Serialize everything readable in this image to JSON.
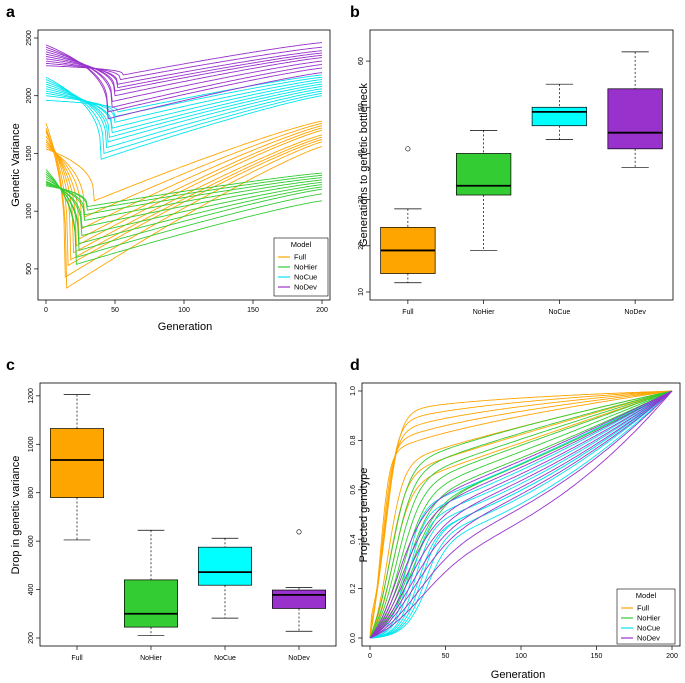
{
  "chart_data": [
    {
      "panel": "a",
      "type": "line",
      "xlabel": "Generation",
      "ylabel": "Genetic Variance",
      "xlim": [
        0,
        200
      ],
      "ylim": [
        300,
        2500
      ],
      "xticks": [
        0,
        50,
        100,
        150,
        200
      ],
      "yticks": [
        500,
        1000,
        1500,
        2000,
        2500
      ],
      "legend_title": "Model",
      "legend_position": "bottom-right",
      "series": [
        {
          "name": "Full",
          "color": "#FFA500",
          "runs": [
            {
              "start": 1760,
              "min": 335,
              "t_min": 15,
              "end": 1560
            },
            {
              "start": 1720,
              "min": 430,
              "t_min": 14,
              "end": 1600
            },
            {
              "start": 1700,
              "min": 530,
              "t_min": 16,
              "end": 1620
            },
            {
              "start": 1680,
              "min": 580,
              "t_min": 18,
              "end": 1640
            },
            {
              "start": 1650,
              "min": 640,
              "t_min": 20,
              "end": 1660
            },
            {
              "start": 1620,
              "min": 700,
              "t_min": 22,
              "end": 1700
            },
            {
              "start": 1600,
              "min": 760,
              "t_min": 24,
              "end": 1720
            },
            {
              "start": 1580,
              "min": 850,
              "t_min": 26,
              "end": 1740
            },
            {
              "start": 1560,
              "min": 950,
              "t_min": 28,
              "end": 1760
            },
            {
              "start": 1540,
              "min": 1090,
              "t_min": 35,
              "end": 1780
            }
          ]
        },
        {
          "name": "NoHier",
          "color": "#33CC33",
          "runs": [
            {
              "start": 1360,
              "min": 540,
              "t_min": 22,
              "end": 1090
            },
            {
              "start": 1340,
              "min": 600,
              "t_min": 22,
              "end": 1150
            },
            {
              "start": 1320,
              "min": 660,
              "t_min": 24,
              "end": 1190
            },
            {
              "start": 1300,
              "min": 720,
              "t_min": 24,
              "end": 1210
            },
            {
              "start": 1280,
              "min": 790,
              "t_min": 26,
              "end": 1230
            },
            {
              "start": 1260,
              "min": 860,
              "t_min": 26,
              "end": 1250
            },
            {
              "start": 1250,
              "min": 920,
              "t_min": 28,
              "end": 1270
            },
            {
              "start": 1240,
              "min": 970,
              "t_min": 28,
              "end": 1290
            },
            {
              "start": 1230,
              "min": 1010,
              "t_min": 30,
              "end": 1310
            },
            {
              "start": 1220,
              "min": 1040,
              "t_min": 30,
              "end": 1330
            }
          ]
        },
        {
          "name": "NoCue",
          "color": "#00E5EE",
          "runs": [
            {
              "start": 2160,
              "min": 1450,
              "t_min": 40,
              "end": 2000
            },
            {
              "start": 2140,
              "min": 1500,
              "t_min": 42,
              "end": 2020
            },
            {
              "start": 2120,
              "min": 1550,
              "t_min": 44,
              "end": 2040
            },
            {
              "start": 2100,
              "min": 1600,
              "t_min": 45,
              "end": 2060
            },
            {
              "start": 2080,
              "min": 1640,
              "t_min": 46,
              "end": 2080
            },
            {
              "start": 2060,
              "min": 1680,
              "t_min": 48,
              "end": 2100
            },
            {
              "start": 2040,
              "min": 1720,
              "t_min": 48,
              "end": 2120
            },
            {
              "start": 2020,
              "min": 1770,
              "t_min": 50,
              "end": 2140
            },
            {
              "start": 2000,
              "min": 1820,
              "t_min": 50,
              "end": 2160
            },
            {
              "start": 1960,
              "min": 1860,
              "t_min": 52,
              "end": 2180
            }
          ]
        },
        {
          "name": "NoDev",
          "color": "#9932CC",
          "runs": [
            {
              "start": 2440,
              "min": 1800,
              "t_min": 45,
              "end": 2200
            },
            {
              "start": 2420,
              "min": 1860,
              "t_min": 45,
              "end": 2240
            },
            {
              "start": 2400,
              "min": 1900,
              "t_min": 48,
              "end": 2270
            },
            {
              "start": 2380,
              "min": 1950,
              "t_min": 48,
              "end": 2300
            },
            {
              "start": 2360,
              "min": 2000,
              "t_min": 50,
              "end": 2330
            },
            {
              "start": 2340,
              "min": 2040,
              "t_min": 50,
              "end": 2350
            },
            {
              "start": 2320,
              "min": 2070,
              "t_min": 52,
              "end": 2370
            },
            {
              "start": 2300,
              "min": 2100,
              "t_min": 52,
              "end": 2390
            },
            {
              "start": 2280,
              "min": 2140,
              "t_min": 54,
              "end": 2420
            },
            {
              "start": 2260,
              "min": 2180,
              "t_min": 56,
              "end": 2460
            }
          ]
        }
      ]
    },
    {
      "panel": "b",
      "type": "boxplot",
      "ylabel": "Generations to genetic bottleneck",
      "ylim": [
        10,
        65
      ],
      "yticks": [
        10,
        20,
        30,
        40,
        50,
        60
      ],
      "categories": [
        "Full",
        "NoHier",
        "NoCue",
        "NoDev"
      ],
      "boxes": [
        {
          "name": "Full",
          "color": "#FFA500",
          "whisker_low": 12,
          "q1": 14,
          "median": 19,
          "q3": 24,
          "whisker_high": 28,
          "outliers": [
            41
          ]
        },
        {
          "name": "NoHier",
          "color": "#33CC33",
          "whisker_low": 19,
          "q1": 31,
          "median": 33,
          "q3": 40,
          "whisker_high": 45,
          "outliers": []
        },
        {
          "name": "NoCue",
          "color": "#00FFFF",
          "whisker_low": 43,
          "q1": 46,
          "median": 49,
          "q3": 50,
          "whisker_high": 55,
          "outliers": []
        },
        {
          "name": "NoDev",
          "color": "#9932CC",
          "whisker_low": 37,
          "q1": 41,
          "median": 44.5,
          "q3": 54,
          "whisker_high": 62,
          "outliers": []
        }
      ]
    },
    {
      "panel": "c",
      "type": "boxplot",
      "ylabel": "Drop in genetic variance",
      "ylim": [
        200,
        1220
      ],
      "yticks": [
        200,
        400,
        600,
        800,
        1000,
        1200
      ],
      "categories": [
        "Full",
        "NoHier",
        "NoCue",
        "NoDev"
      ],
      "boxes": [
        {
          "name": "Full",
          "color": "#FFA500",
          "whisker_low": 605,
          "q1": 780,
          "median": 935,
          "q3": 1065,
          "whisker_high": 1205,
          "outliers": []
        },
        {
          "name": "NoHier",
          "color": "#33CC33",
          "whisker_low": 210,
          "q1": 245,
          "median": 300,
          "q3": 440,
          "whisker_high": 645,
          "outliers": []
        },
        {
          "name": "NoCue",
          "color": "#00FFFF",
          "whisker_low": 282,
          "q1": 418,
          "median": 472,
          "q3": 575,
          "whisker_high": 612,
          "outliers": []
        },
        {
          "name": "NoDev",
          "color": "#9932CC",
          "whisker_low": 228,
          "q1": 322,
          "median": 378,
          "q3": 398,
          "whisker_high": 408,
          "outliers": [
            638
          ]
        }
      ]
    },
    {
      "panel": "d",
      "type": "line",
      "xlabel": "Generation",
      "ylabel": "Projected genotype",
      "xlim": [
        0,
        200
      ],
      "ylim": [
        0,
        1
      ],
      "xticks": [
        0,
        50,
        100,
        150,
        200
      ],
      "yticks": [
        0.0,
        0.2,
        0.4,
        0.6,
        0.8,
        1.0
      ],
      "ytick_labels": [
        "0.0",
        "0.2",
        "0.4",
        "0.6",
        "0.8",
        "1.0"
      ],
      "legend_title": "Model",
      "legend_position": "bottom-right",
      "series": [
        {
          "name": "Full",
          "color": "#FFA500",
          "runs": [
            {
              "t_mid": 7,
              "width": 3,
              "plateau": 0.7,
              "b": 0.6
            },
            {
              "t_mid": 8,
              "width": 3.5,
              "plateau": 0.72,
              "b": 0.5
            },
            {
              "t_mid": 9,
              "width": 4,
              "plateau": 0.74,
              "b": 0.4
            },
            {
              "t_mid": 10,
              "width": 4,
              "plateau": 0.76,
              "b": 0.3
            },
            {
              "t_mid": 11,
              "width": 4.5,
              "plateau": 0.78,
              "b": 0.2
            },
            {
              "t_mid": 12,
              "width": 5,
              "plateau": 0.66,
              "b": 0.8
            },
            {
              "t_mid": 13,
              "width": 5.5,
              "plateau": 0.62,
              "b": 0.9
            },
            {
              "t_mid": 15,
              "width": 6,
              "plateau": 0.58,
              "b": 1.0
            }
          ]
        },
        {
          "name": "NoHier",
          "color": "#33CC33",
          "runs": [
            {
              "t_mid": 14,
              "width": 6,
              "plateau": 0.62,
              "b": 0.7
            },
            {
              "t_mid": 16,
              "width": 6.5,
              "plateau": 0.6,
              "b": 0.8
            },
            {
              "t_mid": 18,
              "width": 7,
              "plateau": 0.58,
              "b": 0.9
            },
            {
              "t_mid": 20,
              "width": 7.5,
              "plateau": 0.56,
              "b": 1.0
            },
            {
              "t_mid": 22,
              "width": 8,
              "plateau": 0.54,
              "b": 1.1
            },
            {
              "t_mid": 24,
              "width": 8.5,
              "plateau": 0.52,
              "b": 1.2
            },
            {
              "t_mid": 26,
              "width": 9,
              "plateau": 0.5,
              "b": 1.3
            },
            {
              "t_mid": 28,
              "width": 9.5,
              "plateau": 0.5,
              "b": 1.3
            }
          ]
        },
        {
          "name": "NoCue",
          "color": "#00E5EE",
          "runs": [
            {
              "t_mid": 24,
              "width": 5,
              "plateau": 0.48,
              "b": 1.2
            },
            {
              "t_mid": 26,
              "width": 5,
              "plateau": 0.46,
              "b": 1.3
            },
            {
              "t_mid": 28,
              "width": 5.5,
              "plateau": 0.44,
              "b": 1.4
            },
            {
              "t_mid": 30,
              "width": 5.5,
              "plateau": 0.42,
              "b": 1.5
            },
            {
              "t_mid": 32,
              "width": 6,
              "plateau": 0.4,
              "b": 1.6
            },
            {
              "t_mid": 34,
              "width": 6,
              "plateau": 0.4,
              "b": 1.6
            },
            {
              "t_mid": 36,
              "width": 6.5,
              "plateau": 0.38,
              "b": 1.7
            },
            {
              "t_mid": 38,
              "width": 7,
              "plateau": 0.36,
              "b": 1.8
            }
          ]
        },
        {
          "name": "NoDev",
          "color": "#9932CC",
          "runs": [
            {
              "t_mid": 18,
              "width": 9,
              "plateau": 0.5,
              "b": 1.2
            },
            {
              "t_mid": 20,
              "width": 10,
              "plateau": 0.48,
              "b": 1.3
            },
            {
              "t_mid": 22,
              "width": 11,
              "plateau": 0.46,
              "b": 1.4
            },
            {
              "t_mid": 24,
              "width": 12,
              "plateau": 0.44,
              "b": 1.5
            },
            {
              "t_mid": 26,
              "width": 13,
              "plateau": 0.42,
              "b": 1.6
            },
            {
              "t_mid": 28,
              "width": 14,
              "plateau": 0.4,
              "b": 1.7
            },
            {
              "t_mid": 30,
              "width": 15,
              "plateau": 0.36,
              "b": 1.9
            },
            {
              "t_mid": 32,
              "width": 16,
              "plateau": 0.32,
              "b": 2.1
            }
          ]
        }
      ]
    }
  ],
  "panels": {
    "a": {
      "letter": "a"
    },
    "b": {
      "letter": "b"
    },
    "c": {
      "letter": "c"
    },
    "d": {
      "letter": "d"
    }
  }
}
